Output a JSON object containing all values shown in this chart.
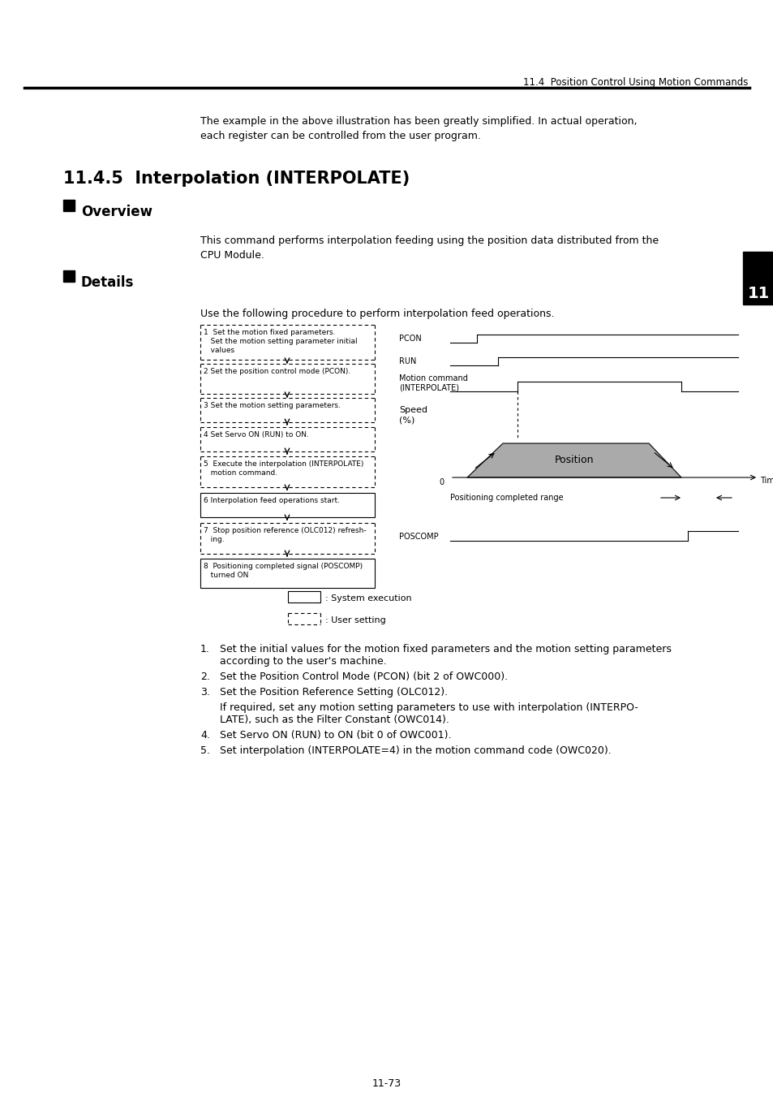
{
  "page_header": "11.4  Position Control Using Motion Commands",
  "section_title": "11.4.5  Interpolation (INTERPOLATE)",
  "overview_title": "Overview",
  "overview_text_1": "This command performs interpolation feeding using the position data distributed from the",
  "overview_text_2": "CPU Module.",
  "details_title": "Details",
  "details_intro": "Use the following procedure to perform interpolation feed operations.",
  "flowchart_boxes": [
    {
      "text": "1  Set the motion fixed parameters.\n   Set the motion setting parameter initial\n   values",
      "style": "dashed"
    },
    {
      "text": "2 Set the position control mode (PCON).",
      "style": "dashed"
    },
    {
      "text": "3 Set the motion setting parameters.",
      "style": "dashed"
    },
    {
      "text": "4 Set Servo ON (RUN) to ON.",
      "style": "dashed"
    },
    {
      "text": "5  Execute the interpolation (INTERPOLATE)\n   motion command.",
      "style": "dashed"
    },
    {
      "text": "6 Interpolation feed operations start.",
      "style": "solid"
    },
    {
      "text": "7  Stop position reference (OLC012) refresh-\n   ing.",
      "style": "dashed"
    },
    {
      "text": "8  Positioning completed signal (POSCOMP)\n   turned ON",
      "style": "solid"
    }
  ],
  "intro_line1": "The example in the above illustration has been greatly simplified. In actual operation,",
  "intro_line2": "each register can be controlled from the user program.",
  "legend_system": ": System execution",
  "legend_user": ": User setting",
  "numbered_list": [
    "Set the initial values for the motion fixed parameters and the motion setting parameters\naccording to the user's machine.",
    "Set the Position Control Mode (PCON) (bit 2 of OWC000).",
    "Set the Position Reference Setting (OLC012).",
    "If required, set any motion setting parameters to use with interpolation (INTERPO-\nLATE), such as the Filter Constant (OWC014).",
    "Set Servo ON (RUN) to ON (bit 0 of OWC001).",
    "Set interpolation (INTERPOLATE=4) in the motion command code (OWC020)."
  ],
  "page_number": "11-73",
  "tab_number": "11",
  "bg_color": "#ffffff",
  "gray_fill": "#aaaaaa"
}
